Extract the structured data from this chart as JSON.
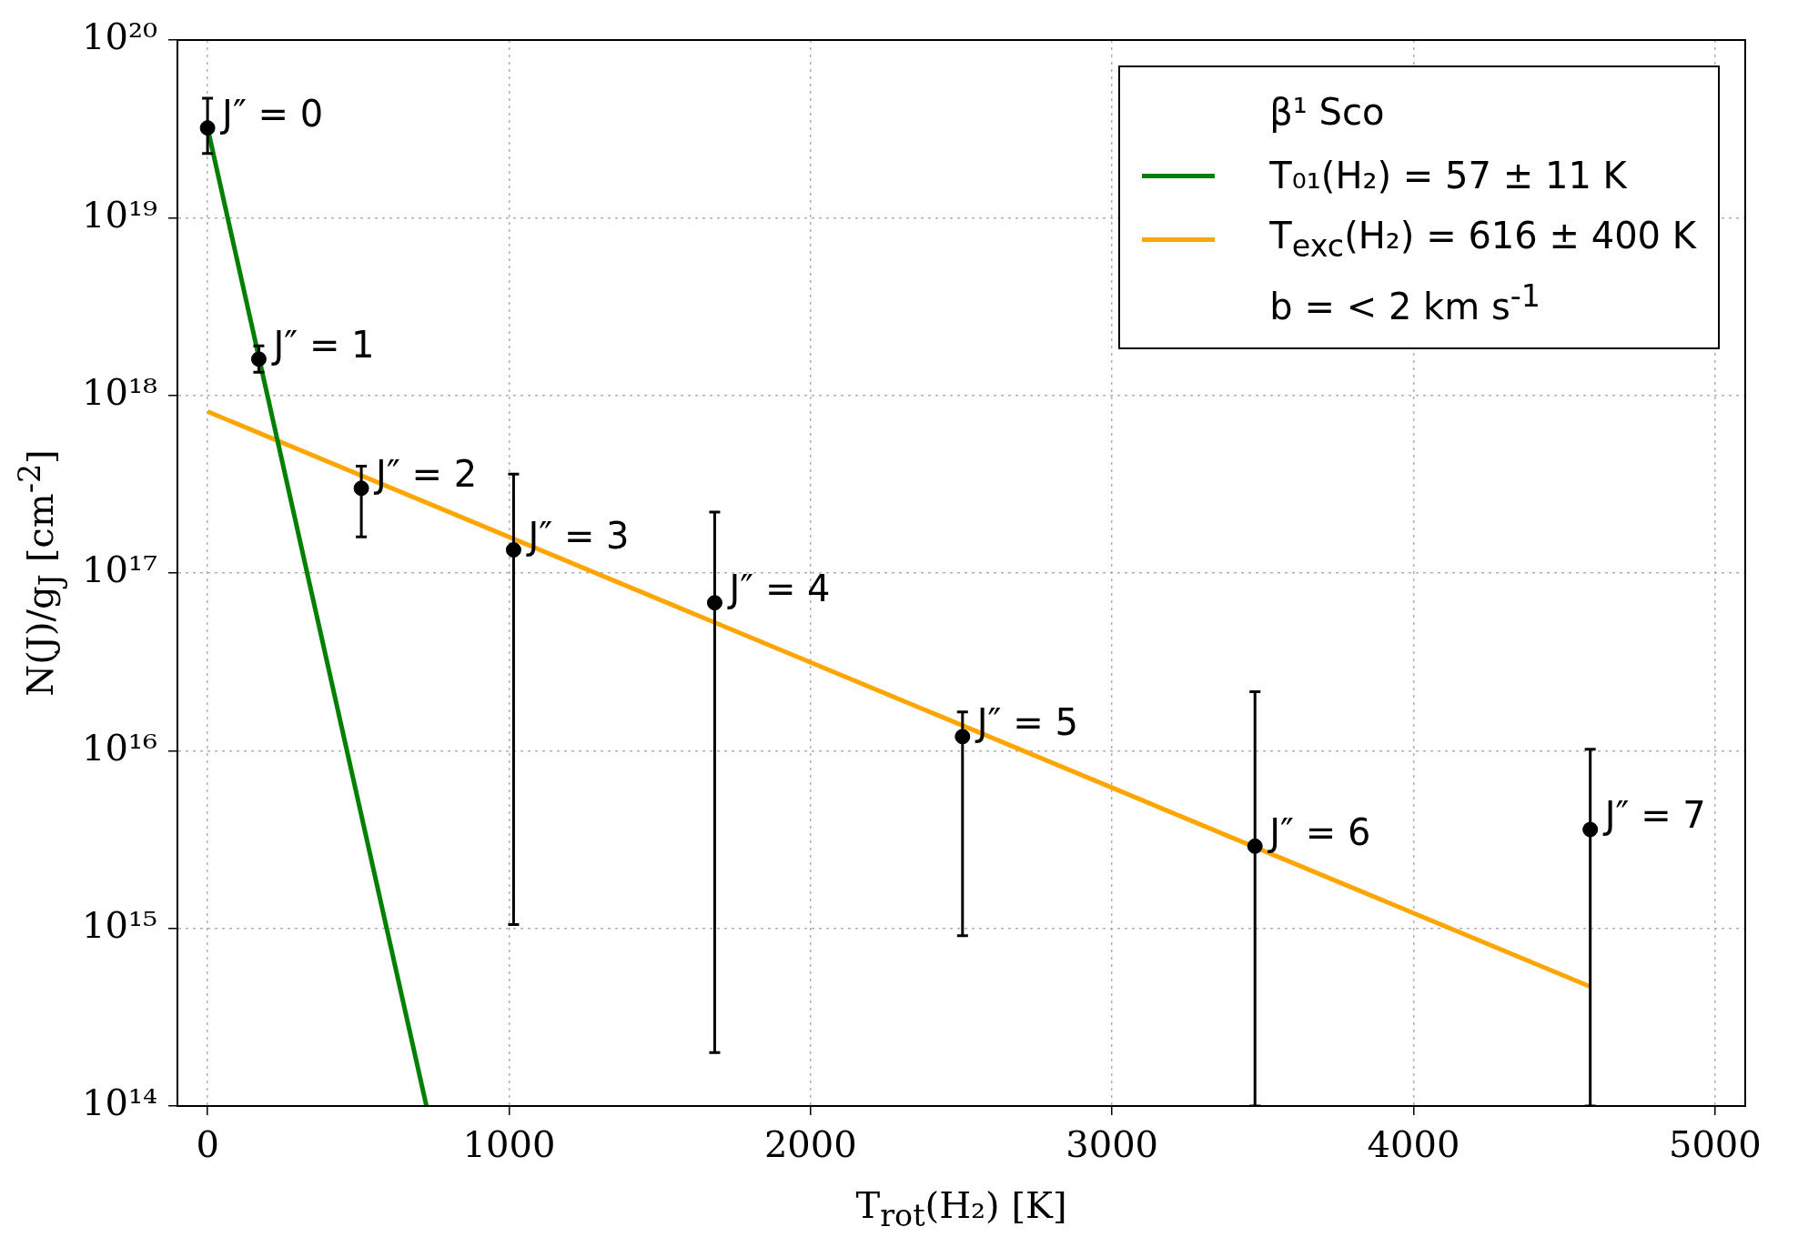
{
  "chart_data": {
    "type": "scatter",
    "xlabel": "T$_{rot}$(H₂) [K]",
    "ylabel": "N(J)/g$_{J}$ [cm$^{-2}$]",
    "legend_title": "β¹ Sco",
    "xlim": [
      -100,
      5100
    ],
    "xticks": [
      0,
      1000,
      2000,
      3000,
      4000,
      5000
    ],
    "ylim": [
      100000000000000.0,
      1e+20
    ],
    "yticks": [
      {
        "value": 100000000000000.0,
        "label": "10¹⁴"
      },
      {
        "value": 1000000000000000.0,
        "label": "10¹⁵"
      },
      {
        "value": 1e+16,
        "label": "10¹⁶"
      },
      {
        "value": 1e+17,
        "label": "10¹⁷"
      },
      {
        "value": 1e+18,
        "label": "10¹⁸"
      },
      {
        "value": 1e+19,
        "label": "10¹⁹"
      },
      {
        "value": 1e+20,
        "label": "10²⁰"
      }
    ],
    "log": "y",
    "grid": true,
    "legend": "top right",
    "series": [
      {
        "marker": "circle",
        "color": "#000000",
        "x": [
          0,
          170,
          510,
          1015,
          1682,
          2504,
          3474,
          4586
        ],
        "values": [
          3.2e+19,
          1.6e+18,
          3e+17,
          1.35e+17,
          6.8e+16,
          1.2e+16,
          2900000000000000.0,
          3600000000000000.0
        ],
        "errors": [
          [
            2.3e+19,
            4.7e+19
          ],
          [
            1.35e+18,
            1.9e+18
          ],
          [
            1.6e+17,
            4e+17
          ],
          [
            1050000000000000.0,
            3.6e+17
          ],
          [
            200000000000000.0,
            2.2e+17
          ],
          [
            910000000000000.0,
            1.65e+16
          ],
          [
            100000000000000.0,
            2.15e+16
          ],
          [
            100000000000000.0,
            1.02e+16
          ]
        ]
      },
      {
        "type": "line",
        "name": "T₀₁(H₂) = 57 ± 11 K",
        "color": "#008000",
        "x": [
          0,
          726
        ],
        "values": [
          3.2e+19,
          100000000000000.0
        ]
      },
      {
        "type": "line",
        "name": "T$_{exc}$(H₂) = 616 ± 400 K",
        "color": "#ffa500",
        "x": [
          0,
          4586
        ],
        "values": [
          8.1e+17,
          470000000000000.0
        ]
      }
    ],
    "annotations": [
      {
        "text": "J″ = 0",
        "x": 0,
        "y": 3.2e+19
      },
      {
        "text": "J″ = 1",
        "x": 170,
        "y": 1.6e+18
      },
      {
        "text": "J″ = 2",
        "x": 510,
        "y": 3e+17
      },
      {
        "text": "J″ = 3",
        "x": 1015,
        "y": 1.35e+17
      },
      {
        "text": "J″ = 4",
        "x": 1682,
        "y": 6.8e+16
      },
      {
        "text": "J″ = 5",
        "x": 2504,
        "y": 1.2e+16
      },
      {
        "text": "J″ = 6",
        "x": 3474,
        "y": 2900000000000000.0
      },
      {
        "text": "J″ = 7",
        "x": 4586,
        "y": 3600000000000000.0
      },
      "b = < 2 km s$^{-1}$"
    ]
  }
}
